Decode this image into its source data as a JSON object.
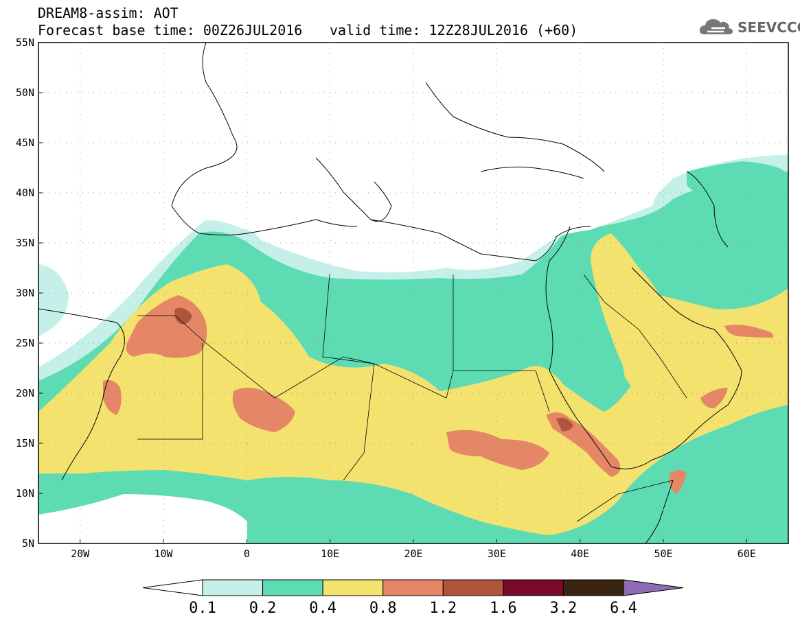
{
  "title": {
    "model_line": "DREAM8-assim: AOT",
    "base_time": "Forecast base time: 00Z26JUL2016",
    "valid_time": "valid time: 12Z28JUL2016 (+60)"
  },
  "logo": {
    "text": "SEEVCCC",
    "icon": "cloud-icon"
  },
  "map": {
    "lat_labels": [
      "55N",
      "50N",
      "45N",
      "40N",
      "35N",
      "30N",
      "25N",
      "20N",
      "15N",
      "10N",
      "5N"
    ],
    "lon_labels": [
      "20W",
      "10W",
      "0",
      "10E",
      "20E",
      "30E",
      "40E",
      "50E",
      "60E"
    ],
    "lat_range": [
      5,
      55
    ],
    "lon_range": [
      -25,
      65
    ]
  },
  "colorbar": {
    "labels": [
      "0.1",
      "0.2",
      "0.4",
      "0.8",
      "1.2",
      "1.6",
      "3.2",
      "6.4"
    ],
    "colors": {
      "below": "#ffffff",
      "c1": "#c4f0e9",
      "c2": "#5ddcb4",
      "c3": "#f3e26e",
      "c4": "#e58667",
      "c5": "#b0553c",
      "c6": "#7a0a2a",
      "c7": "#3a2412",
      "above": "#8e6bb5"
    }
  }
}
